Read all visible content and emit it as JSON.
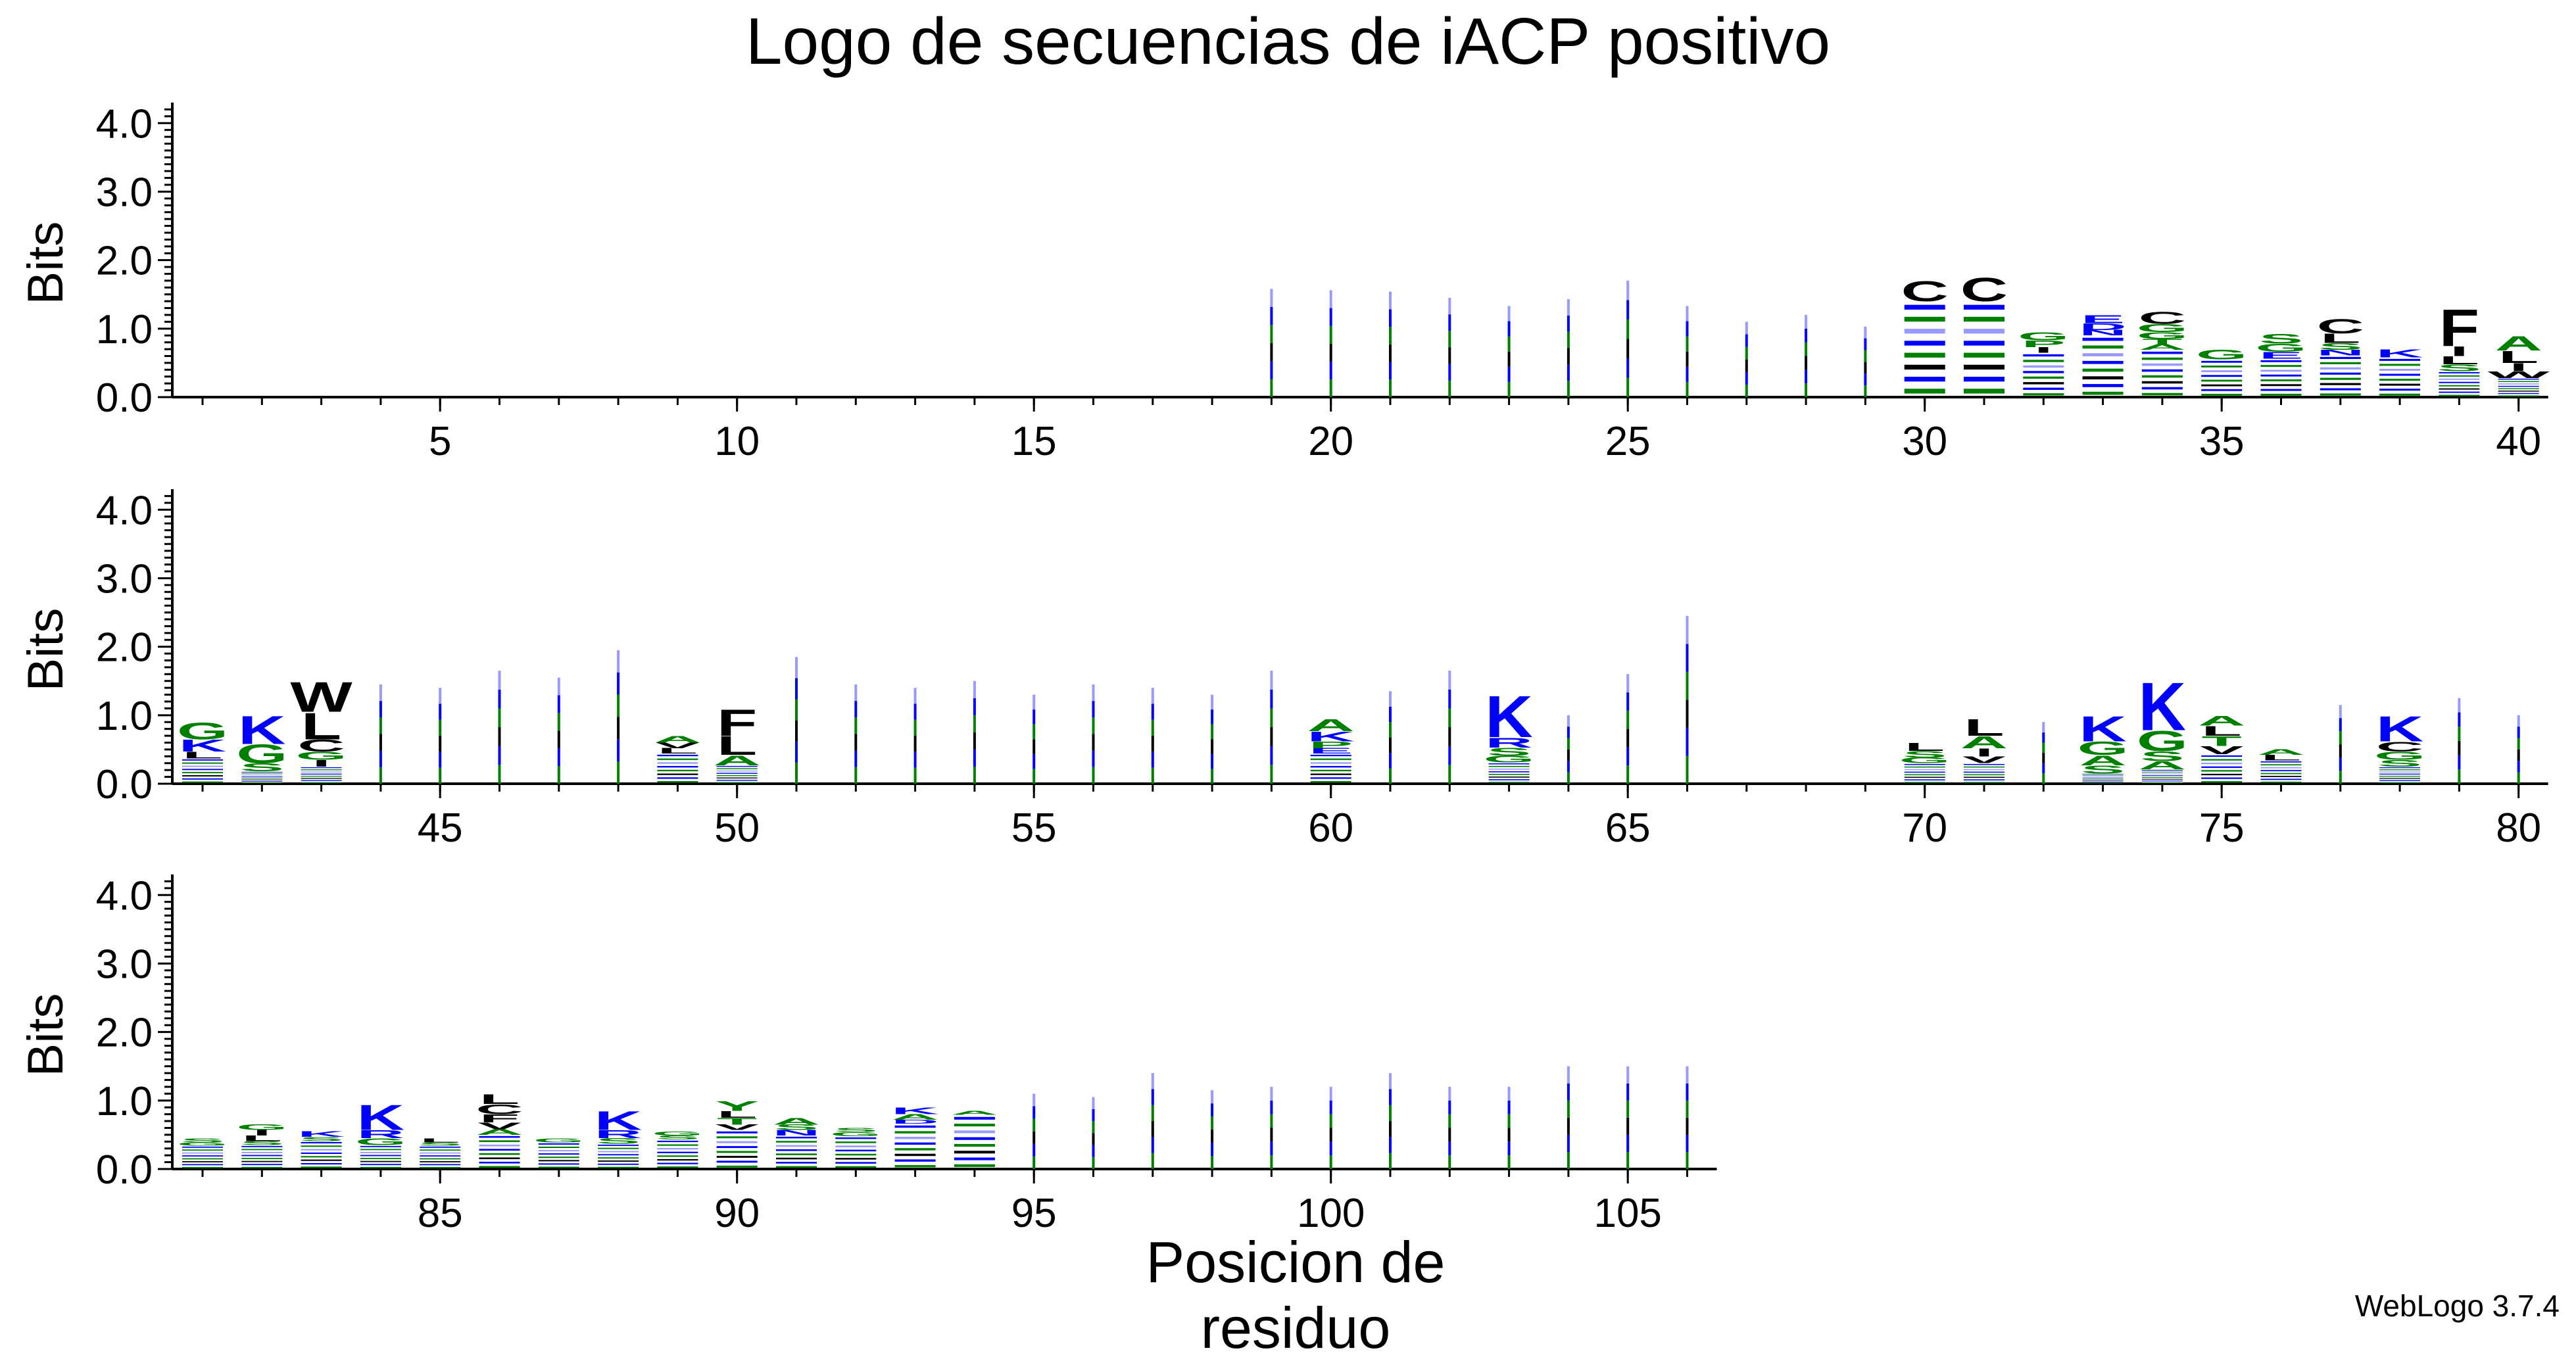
{
  "title": "Logo de secuencias de iACP positivo",
  "footer": "WebLogo 3.7.4",
  "colors": {
    "basic": "#0000ff",
    "polar": "#008000",
    "hydrophobic": "#000000",
    "other": "#9999ff"
  },
  "chart_data": {
    "type": "sequence-logo",
    "title": "Logo de secuencias de iACP positivo",
    "xlabel": "Posicion de residuo",
    "ylabel": "Bits",
    "ylim": [
      0,
      4.3
    ],
    "yticks": [
      "0.0",
      "1.0",
      "2.0",
      "3.0",
      "4.0"
    ],
    "position_range": [
      1,
      106
    ],
    "rows": [
      {
        "positions": [
          1,
          40
        ],
        "xticks": [
          5,
          10,
          15,
          20,
          25,
          30,
          35,
          40
        ]
      },
      {
        "positions": [
          41,
          80
        ],
        "xticks": [
          45,
          50,
          55,
          60,
          65,
          70,
          75,
          80
        ]
      },
      {
        "positions": [
          81,
          106
        ],
        "xticks": [
          85,
          90,
          95,
          100,
          105
        ]
      }
    ],
    "positions": [
      {
        "pos": 19,
        "total": 1.58,
        "stack": []
      },
      {
        "pos": 20,
        "total": 1.56,
        "stack": []
      },
      {
        "pos": 21,
        "total": 1.54,
        "stack": []
      },
      {
        "pos": 22,
        "total": 1.45,
        "stack": []
      },
      {
        "pos": 23,
        "total": 1.33,
        "stack": []
      },
      {
        "pos": 24,
        "total": 1.43,
        "stack": []
      },
      {
        "pos": 25,
        "total": 1.7,
        "stack": []
      },
      {
        "pos": 26,
        "total": 1.33,
        "stack": []
      },
      {
        "pos": 27,
        "total": 1.1,
        "stack": []
      },
      {
        "pos": 28,
        "total": 1.2,
        "stack": []
      },
      {
        "pos": 29,
        "total": 1.03,
        "stack": []
      },
      {
        "pos": 30,
        "total": 1.7,
        "stack": [
          [
            "C",
            0.3
          ]
        ]
      },
      {
        "pos": 31,
        "total": 1.75,
        "stack": [
          [
            "C",
            0.35
          ]
        ]
      },
      {
        "pos": 32,
        "total": 0.95,
        "stack": [
          [
            "G",
            0.12
          ],
          [
            "P",
            0.1
          ],
          [
            "I",
            0.08
          ]
        ]
      },
      {
        "pos": 33,
        "total": 1.2,
        "stack": [
          [
            "E",
            0.12
          ],
          [
            "D",
            0.1
          ],
          [
            "N",
            0.08
          ]
        ]
      },
      {
        "pos": 34,
        "total": 1.25,
        "stack": [
          [
            "C",
            0.18
          ],
          [
            "G",
            0.12
          ],
          [
            "G",
            0.1
          ],
          [
            "A",
            0.08
          ],
          [
            "T",
            0.08
          ]
        ]
      },
      {
        "pos": 35,
        "total": 0.7,
        "stack": [
          [
            "G",
            0.15
          ]
        ]
      },
      {
        "pos": 36,
        "total": 0.93,
        "stack": [
          [
            "S",
            0.15
          ],
          [
            "G",
            0.12
          ],
          [
            "E",
            0.1
          ]
        ]
      },
      {
        "pos": 37,
        "total": 1.15,
        "stack": [
          [
            "C",
            0.22
          ],
          [
            "L",
            0.14
          ],
          [
            "S",
            0.1
          ],
          [
            "N",
            0.08
          ]
        ]
      },
      {
        "pos": 38,
        "total": 0.7,
        "stack": [
          [
            "K",
            0.12
          ]
        ]
      },
      {
        "pos": 39,
        "total": 1.3,
        "stack": [
          [
            "F",
            0.55
          ],
          [
            "I",
            0.15
          ],
          [
            "L",
            0.12
          ],
          [
            "S",
            0.1
          ]
        ]
      },
      {
        "pos": 40,
        "total": 0.9,
        "stack": [
          [
            "A",
            0.22
          ],
          [
            "L",
            0.18
          ],
          [
            "I",
            0.12
          ],
          [
            "W",
            0.1
          ]
        ]
      },
      {
        "pos": 41,
        "total": 0.9,
        "stack": [
          [
            "G",
            0.25
          ],
          [
            "K",
            0.18
          ],
          [
            "L",
            0.1
          ]
        ]
      },
      {
        "pos": 42,
        "total": 1.0,
        "stack": [
          [
            "K",
            0.42
          ],
          [
            "G",
            0.28
          ],
          [
            "S",
            0.12
          ]
        ]
      },
      {
        "pos": 43,
        "total": 1.5,
        "stack": [
          [
            "W",
            0.45
          ],
          [
            "L",
            0.4
          ],
          [
            "C",
            0.18
          ],
          [
            "G",
            0.12
          ],
          [
            "I",
            0.1
          ]
        ]
      },
      {
        "pos": 44,
        "total": 1.45,
        "stack": []
      },
      {
        "pos": 45,
        "total": 1.4,
        "stack": []
      },
      {
        "pos": 46,
        "total": 1.65,
        "stack": []
      },
      {
        "pos": 47,
        "total": 1.55,
        "stack": []
      },
      {
        "pos": 48,
        "total": 1.95,
        "stack": []
      },
      {
        "pos": 49,
        "total": 0.7,
        "stack": [
          [
            "A",
            0.1
          ],
          [
            "L",
            0.08
          ],
          [
            "V",
            0.08
          ]
        ]
      },
      {
        "pos": 50,
        "total": 1.1,
        "stack": [
          [
            "F",
            0.4
          ],
          [
            "L",
            0.28
          ],
          [
            "A",
            0.15
          ]
        ]
      },
      {
        "pos": 51,
        "total": 1.85,
        "stack": []
      },
      {
        "pos": 52,
        "total": 1.45,
        "stack": []
      },
      {
        "pos": 53,
        "total": 1.4,
        "stack": []
      },
      {
        "pos": 54,
        "total": 1.5,
        "stack": []
      },
      {
        "pos": 55,
        "total": 1.3,
        "stack": []
      },
      {
        "pos": 56,
        "total": 1.45,
        "stack": []
      },
      {
        "pos": 57,
        "total": 1.4,
        "stack": []
      },
      {
        "pos": 58,
        "total": 1.3,
        "stack": []
      },
      {
        "pos": 59,
        "total": 1.65,
        "stack": []
      },
      {
        "pos": 60,
        "total": 0.95,
        "stack": [
          [
            "A",
            0.18
          ],
          [
            "K",
            0.15
          ],
          [
            "P",
            0.1
          ],
          [
            "E",
            0.08
          ]
        ]
      },
      {
        "pos": 61,
        "total": 1.35,
        "stack": []
      },
      {
        "pos": 62,
        "total": 1.65,
        "stack": []
      },
      {
        "pos": 63,
        "total": 1.3,
        "stack": [
          [
            "K",
            0.62
          ],
          [
            "R",
            0.15
          ],
          [
            "S",
            0.12
          ],
          [
            "G",
            0.1
          ]
        ]
      },
      {
        "pos": 64,
        "total": 1.0,
        "stack": []
      },
      {
        "pos": 65,
        "total": 1.6,
        "stack": []
      },
      {
        "pos": 66,
        "total": 2.45,
        "stack": []
      },
      {
        "pos": 67,
        "total": 0.0,
        "stack": []
      },
      {
        "pos": 68,
        "total": 0.0,
        "stack": []
      },
      {
        "pos": 69,
        "total": 0.0,
        "stack": []
      },
      {
        "pos": 70,
        "total": 0.6,
        "stack": [
          [
            "L",
            0.12
          ],
          [
            "S",
            0.1
          ],
          [
            "G",
            0.08
          ]
        ]
      },
      {
        "pos": 71,
        "total": 0.95,
        "stack": [
          [
            "L",
            0.25
          ],
          [
            "A",
            0.18
          ],
          [
            "I",
            0.12
          ],
          [
            "V",
            0.1
          ]
        ]
      },
      {
        "pos": 72,
        "total": 0.9,
        "stack": []
      },
      {
        "pos": 73,
        "total": 1.0,
        "stack": [
          [
            "K",
            0.38
          ],
          [
            "G",
            0.2
          ],
          [
            "A",
            0.15
          ],
          [
            "S",
            0.12
          ]
        ]
      },
      {
        "pos": 74,
        "total": 1.5,
        "stack": [
          [
            "K",
            0.72
          ],
          [
            "G",
            0.3
          ],
          [
            "S",
            0.15
          ],
          [
            "A",
            0.12
          ]
        ]
      },
      {
        "pos": 75,
        "total": 1.0,
        "stack": [
          [
            "T",
            0.15
          ],
          [
            "L",
            0.15
          ],
          [
            "A",
            0.15
          ],
          [
            "V",
            0.12
          ]
        ]
      },
      {
        "pos": 76,
        "total": 0.5,
        "stack": [
          [
            "L",
            0.08
          ],
          [
            "A",
            0.08
          ]
        ]
      },
      {
        "pos": 77,
        "total": 1.15,
        "stack": []
      },
      {
        "pos": 78,
        "total": 1.0,
        "stack": [
          [
            "K",
            0.38
          ],
          [
            "C",
            0.15
          ],
          [
            "G",
            0.12
          ],
          [
            "S",
            0.1
          ]
        ]
      },
      {
        "pos": 79,
        "total": 1.25,
        "stack": []
      },
      {
        "pos": 80,
        "total": 1.0,
        "stack": []
      },
      {
        "pos": 81,
        "total": 0.45,
        "stack": [
          [
            "S",
            0.06
          ],
          [
            "G",
            0.05
          ]
        ]
      },
      {
        "pos": 82,
        "total": 0.65,
        "stack": [
          [
            "L",
            0.08
          ],
          [
            "I",
            0.08
          ],
          [
            "G",
            0.08
          ],
          [
            "S",
            0.06
          ]
        ]
      },
      {
        "pos": 83,
        "total": 0.55,
        "stack": [
          [
            "K",
            0.08
          ],
          [
            "S",
            0.06
          ]
        ]
      },
      {
        "pos": 84,
        "total": 0.95,
        "stack": [
          [
            "K",
            0.38
          ],
          [
            "R",
            0.12
          ],
          [
            "G",
            0.1
          ]
        ]
      },
      {
        "pos": 85,
        "total": 0.45,
        "stack": [
          [
            "L",
            0.06
          ],
          [
            "S",
            0.05
          ]
        ]
      },
      {
        "pos": 86,
        "total": 1.1,
        "stack": [
          [
            "C",
            0.15
          ],
          [
            "L",
            0.15
          ],
          [
            "F",
            0.12
          ],
          [
            "V",
            0.1
          ],
          [
            "A",
            0.08
          ]
        ]
      },
      {
        "pos": 87,
        "total": 0.45,
        "stack": [
          [
            "G",
            0.06
          ]
        ]
      },
      {
        "pos": 88,
        "total": 0.85,
        "stack": [
          [
            "K",
            0.28
          ],
          [
            "R",
            0.12
          ],
          [
            "S",
            0.08
          ]
        ]
      },
      {
        "pos": 89,
        "total": 0.55,
        "stack": [
          [
            "S",
            0.06
          ],
          [
            "G",
            0.06
          ]
        ]
      },
      {
        "pos": 90,
        "total": 1.0,
        "stack": [
          [
            "Y",
            0.15
          ],
          [
            "T",
            0.1
          ],
          [
            "L",
            0.1
          ],
          [
            "V",
            0.08
          ]
        ]
      },
      {
        "pos": 91,
        "total": 0.75,
        "stack": [
          [
            "A",
            0.1
          ],
          [
            "N",
            0.08
          ],
          [
            "S",
            0.08
          ]
        ]
      },
      {
        "pos": 92,
        "total": 0.6,
        "stack": [
          [
            "G",
            0.06
          ],
          [
            "S",
            0.06
          ]
        ]
      },
      {
        "pos": 93,
        "total": 0.9,
        "stack": [
          [
            "K",
            0.1
          ],
          [
            "A",
            0.08
          ],
          [
            "D",
            0.06
          ]
        ]
      },
      {
        "pos": 94,
        "total": 0.85,
        "stack": [
          [
            "A",
            0.06
          ]
        ]
      },
      {
        "pos": 95,
        "total": 1.1,
        "stack": []
      },
      {
        "pos": 96,
        "total": 1.05,
        "stack": []
      },
      {
        "pos": 97,
        "total": 1.4,
        "stack": []
      },
      {
        "pos": 98,
        "total": 1.15,
        "stack": []
      },
      {
        "pos": 99,
        "total": 1.2,
        "stack": []
      },
      {
        "pos": 100,
        "total": 1.2,
        "stack": []
      },
      {
        "pos": 101,
        "total": 1.4,
        "stack": []
      },
      {
        "pos": 102,
        "total": 1.2,
        "stack": []
      },
      {
        "pos": 103,
        "total": 1.2,
        "stack": []
      },
      {
        "pos": 104,
        "total": 1.5,
        "stack": []
      },
      {
        "pos": 105,
        "total": 1.5,
        "stack": []
      },
      {
        "pos": 106,
        "total": 1.5,
        "stack": []
      }
    ]
  }
}
